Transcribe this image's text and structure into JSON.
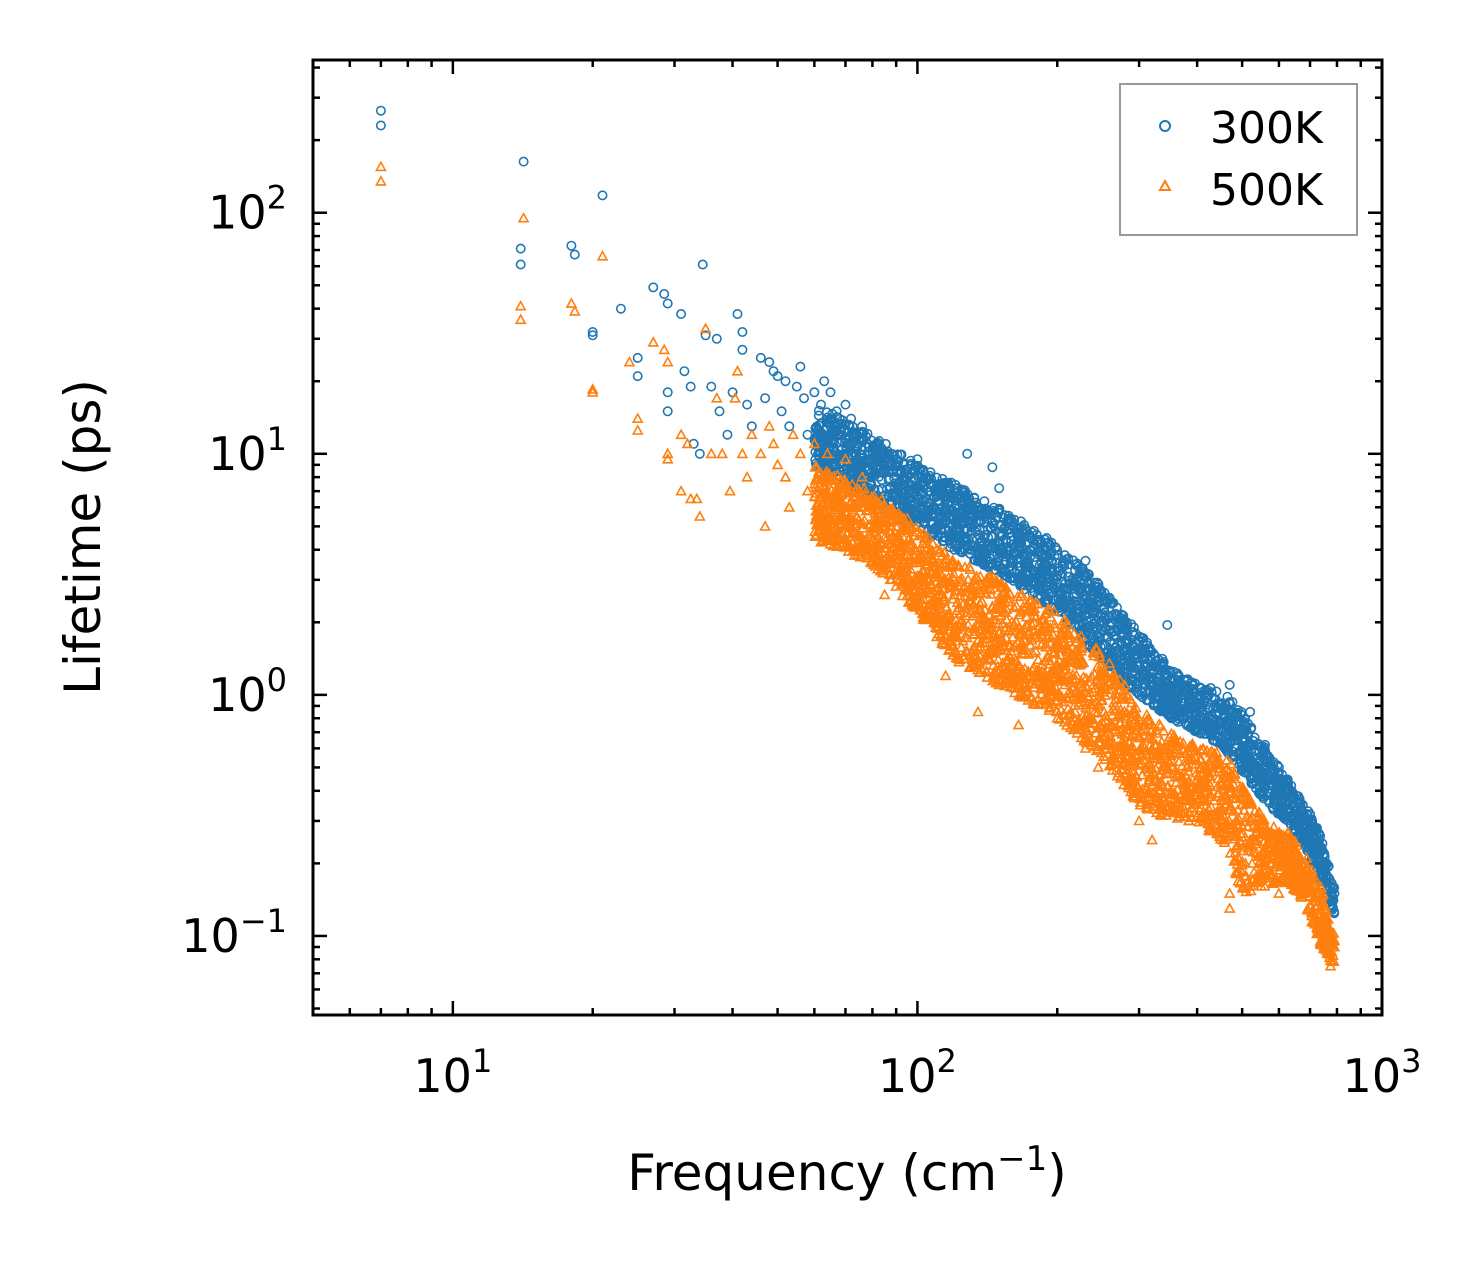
{
  "chart_data": {
    "type": "scatter",
    "title": "",
    "xlabel": "Frequency (cm",
    "xlabel_sup": "−1",
    "xlabel_tail": ")",
    "ylabel": "Lifetime (ps)",
    "xscale": "log",
    "yscale": "log",
    "xlim": [
      5,
      1000
    ],
    "ylim": [
      0.047,
      430
    ],
    "legend_position": "top-right",
    "x_ticks": [
      {
        "value": 10,
        "base": "10",
        "exp": "1"
      },
      {
        "value": 100,
        "base": "10",
        "exp": "2"
      },
      {
        "value": 1000,
        "base": "10",
        "exp": "3"
      }
    ],
    "y_ticks": [
      {
        "value": 0.1,
        "base": "10",
        "exp": "−1"
      },
      {
        "value": 1,
        "base": "10",
        "exp": "0"
      },
      {
        "value": 10,
        "base": "10",
        "exp": "1"
      },
      {
        "value": 100,
        "base": "10",
        "exp": "2"
      }
    ],
    "series": [
      {
        "name": "300K",
        "color": "#1f77b4",
        "marker": "circle",
        "points": [
          [
            7.0,
            265
          ],
          [
            7.0,
            230
          ],
          [
            14.2,
            163
          ],
          [
            21.0,
            118
          ],
          [
            14.0,
            71
          ],
          [
            14.0,
            61
          ],
          [
            18.0,
            73
          ],
          [
            18.3,
            67
          ],
          [
            20.0,
            32
          ],
          [
            20.0,
            31
          ],
          [
            23.0,
            40
          ],
          [
            25.0,
            25
          ],
          [
            25.0,
            21
          ],
          [
            27.0,
            49
          ],
          [
            28.5,
            46
          ],
          [
            29.0,
            42
          ],
          [
            29.0,
            18
          ],
          [
            29.0,
            15
          ],
          [
            31.0,
            38
          ],
          [
            31.5,
            22
          ],
          [
            32.5,
            19
          ],
          [
            33.0,
            11
          ],
          [
            34.0,
            10
          ],
          [
            34.5,
            61
          ],
          [
            35.0,
            31
          ],
          [
            36.0,
            19
          ],
          [
            37.0,
            30
          ],
          [
            37.5,
            15
          ],
          [
            39.0,
            12
          ],
          [
            40.0,
            18
          ],
          [
            41.0,
            38
          ],
          [
            42.0,
            32
          ],
          [
            42.0,
            27
          ],
          [
            43.0,
            16
          ],
          [
            44.0,
            13
          ],
          [
            46.0,
            25
          ],
          [
            47.0,
            17
          ],
          [
            48.0,
            24
          ],
          [
            49.0,
            22
          ],
          [
            50.0,
            21
          ],
          [
            51.0,
            15
          ],
          [
            52.0,
            20
          ],
          [
            53.0,
            13
          ],
          [
            55.0,
            19
          ],
          [
            56.0,
            23
          ],
          [
            57.0,
            17
          ],
          [
            58.0,
            12
          ],
          [
            60.0,
            18
          ],
          [
            62.0,
            16
          ],
          [
            63.0,
            20
          ],
          [
            65.0,
            18
          ],
          [
            67.0,
            15
          ],
          [
            69.0,
            13
          ],
          [
            70.0,
            16
          ],
          [
            72.0,
            14
          ],
          [
            74.0,
            12
          ],
          [
            76.0,
            13
          ],
          [
            78.0,
            11
          ],
          [
            82.0,
            11
          ],
          [
            86.0,
            10
          ],
          [
            90.0,
            9
          ],
          [
            95.0,
            8
          ],
          [
            100.0,
            9.5
          ],
          [
            105.0,
            8
          ],
          [
            110.0,
            7.2
          ],
          [
            115.0,
            7.5
          ],
          [
            120.0,
            6.6
          ],
          [
            128.0,
            10
          ],
          [
            135.0,
            6
          ],
          [
            140.0,
            5.5
          ],
          [
            145.0,
            8.8
          ],
          [
            150.0,
            7.2
          ],
          [
            155.0,
            5
          ],
          [
            165.0,
            4.5
          ],
          [
            175.0,
            4
          ],
          [
            190.0,
            3.8
          ],
          [
            205.0,
            3.5
          ],
          [
            220.0,
            3
          ],
          [
            230.0,
            3.6
          ],
          [
            245.0,
            2.8
          ],
          [
            260.0,
            2.4
          ],
          [
            290.0,
            1.5
          ],
          [
            310.0,
            1.3
          ],
          [
            345.0,
            1.95
          ],
          [
            380.0,
            1.15
          ],
          [
            420.0,
            1.05
          ],
          [
            470.0,
            1.1
          ],
          [
            520.0,
            0.85
          ],
          [
            560.0,
            0.62
          ],
          [
            600.0,
            0.5
          ],
          [
            660.0,
            0.38
          ],
          [
            720.0,
            0.28
          ],
          [
            760.0,
            0.2
          ],
          [
            790.0,
            0.15
          ]
        ],
        "band": [
          [
            60,
            16,
            9
          ],
          [
            80,
            12,
            6
          ],
          [
            100,
            9,
            5
          ],
          [
            120,
            7.5,
            4
          ],
          [
            150,
            6,
            3.2
          ],
          [
            200,
            4.2,
            2.2
          ],
          [
            250,
            2.8,
            1.4
          ],
          [
            300,
            1.8,
            1.0
          ],
          [
            350,
            1.3,
            0.8
          ],
          [
            400,
            1.1,
            0.7
          ],
          [
            450,
            1.05,
            0.62
          ],
          [
            500,
            0.85,
            0.48
          ],
          [
            560,
            0.6,
            0.36
          ],
          [
            620,
            0.46,
            0.3
          ],
          [
            680,
            0.36,
            0.24
          ],
          [
            740,
            0.26,
            0.17
          ],
          [
            790,
            0.16,
            0.12
          ]
        ]
      },
      {
        "name": "500K",
        "color": "#ff7f0e",
        "marker": "triangle",
        "points": [
          [
            7.0,
            155
          ],
          [
            7.0,
            135
          ],
          [
            14.2,
            95
          ],
          [
            21.0,
            66
          ],
          [
            14.0,
            41
          ],
          [
            14.0,
            36
          ],
          [
            18.0,
            42
          ],
          [
            18.3,
            39
          ],
          [
            20.0,
            18.5
          ],
          [
            20.0,
            18
          ],
          [
            24.0,
            24
          ],
          [
            25.0,
            14
          ],
          [
            25.0,
            12.5
          ],
          [
            27.0,
            29
          ],
          [
            28.5,
            27
          ],
          [
            29.0,
            24
          ],
          [
            29.0,
            10
          ],
          [
            29.0,
            9.5
          ],
          [
            31.0,
            12
          ],
          [
            31.0,
            7
          ],
          [
            32.0,
            11
          ],
          [
            32.5,
            6.5
          ],
          [
            33.5,
            6.5
          ],
          [
            34.0,
            5.5
          ],
          [
            35.0,
            33
          ],
          [
            36.0,
            10
          ],
          [
            37.0,
            17
          ],
          [
            38.0,
            10
          ],
          [
            39.5,
            7
          ],
          [
            40.5,
            17
          ],
          [
            41.0,
            22
          ],
          [
            42.0,
            10
          ],
          [
            43.0,
            8
          ],
          [
            44.0,
            12
          ],
          [
            46.0,
            10
          ],
          [
            47.0,
            5
          ],
          [
            48.0,
            13
          ],
          [
            49.0,
            11
          ],
          [
            50.0,
            9
          ],
          [
            52.0,
            8
          ],
          [
            53.0,
            6
          ],
          [
            54.0,
            12
          ],
          [
            56.0,
            10
          ],
          [
            58.0,
            7
          ],
          [
            60.0,
            11
          ],
          [
            62.0,
            4.3
          ],
          [
            64.0,
            10
          ],
          [
            66.0,
            8
          ],
          [
            68.0,
            6
          ],
          [
            70.0,
            9.5
          ],
          [
            72.0,
            7
          ],
          [
            74.0,
            5.5
          ],
          [
            76.0,
            8
          ],
          [
            80.0,
            6
          ],
          [
            85.0,
            2.6
          ],
          [
            90.0,
            5
          ],
          [
            95.0,
            3.8
          ],
          [
            105.0,
            3.2
          ],
          [
            115.0,
            1.2
          ],
          [
            120.0,
            2.8
          ],
          [
            135.0,
            0.85
          ],
          [
            145.0,
            2.3
          ],
          [
            155.0,
            2.8
          ],
          [
            165.0,
            0.75
          ],
          [
            180.0,
            2.1
          ],
          [
            200.0,
            0.8
          ],
          [
            230.0,
            0.6
          ],
          [
            245.0,
            0.5
          ],
          [
            270.0,
            0.7
          ],
          [
            300.0,
            0.3
          ],
          [
            320.0,
            0.25
          ],
          [
            350.0,
            0.33
          ],
          [
            380.0,
            0.5
          ],
          [
            420.0,
            0.42
          ],
          [
            470.0,
            0.15
          ],
          [
            470.0,
            0.13
          ],
          [
            520.0,
            0.25
          ],
          [
            560.0,
            0.2
          ],
          [
            600.0,
            0.15
          ],
          [
            660.0,
            0.18
          ],
          [
            720.0,
            0.12
          ],
          [
            760.0,
            0.1
          ],
          [
            775.0,
            0.075
          ],
          [
            790.0,
            0.09
          ]
        ],
        "band": [
          [
            60,
            9,
            4.5
          ],
          [
            80,
            7,
            3.5
          ],
          [
            100,
            5,
            2.2
          ],
          [
            120,
            3.6,
            1.4
          ],
          [
            150,
            3,
            1.1
          ],
          [
            200,
            2.2,
            0.8
          ],
          [
            250,
            1.5,
            0.55
          ],
          [
            300,
            0.9,
            0.35
          ],
          [
            350,
            0.7,
            0.3
          ],
          [
            400,
            0.62,
            0.3
          ],
          [
            460,
            0.58,
            0.24
          ],
          [
            500,
            0.42,
            0.15
          ],
          [
            560,
            0.3,
            0.16
          ],
          [
            620,
            0.28,
            0.17
          ],
          [
            680,
            0.22,
            0.14
          ],
          [
            740,
            0.16,
            0.09
          ],
          [
            790,
            0.1,
            0.075
          ]
        ]
      }
    ]
  }
}
